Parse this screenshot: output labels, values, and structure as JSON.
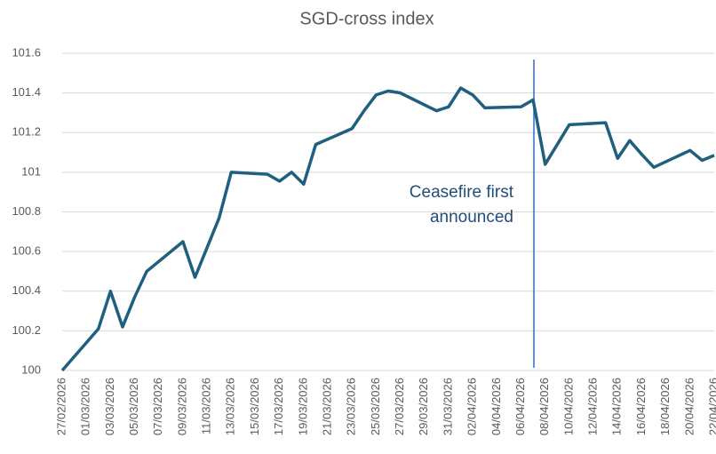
{
  "chart_data": {
    "type": "line",
    "title": "SGD-cross index",
    "x": [
      "27/02/2026",
      "02/03/2026",
      "03/03/2026",
      "04/03/2026",
      "05/03/2026",
      "06/03/2026",
      "09/03/2026",
      "10/03/2026",
      "11/03/2026",
      "12/03/2026",
      "13/03/2026",
      "16/03/2026",
      "17/03/2026",
      "18/03/2026",
      "19/03/2026",
      "20/03/2026",
      "23/03/2026",
      "24/03/2026",
      "25/03/2026",
      "26/03/2026",
      "27/03/2026",
      "30/03/2026",
      "31/03/2026",
      "01/04/2026",
      "02/04/2026",
      "03/04/2026",
      "06/04/2026",
      "07/04/2026",
      "08/04/2026",
      "10/04/2026",
      "13/04/2026",
      "14/04/2026",
      "15/04/2026",
      "16/04/2026",
      "17/04/2026",
      "20/04/2026",
      "21/04/2026",
      "22/04/2026"
    ],
    "series": [
      {
        "name": "SGD-cross index",
        "color": "#1f5f7f",
        "values": [
          100.0,
          100.21,
          100.4,
          100.22,
          100.37,
          100.5,
          100.65,
          100.47,
          100.62,
          100.77,
          101.0,
          100.99,
          100.955,
          101.0,
          100.94,
          101.14,
          101.22,
          101.31,
          101.39,
          101.41,
          101.4,
          101.31,
          101.33,
          101.425,
          101.39,
          101.325,
          101.33,
          101.365,
          101.04,
          101.24,
          101.25,
          101.07,
          101.16,
          101.09,
          101.025,
          101.11,
          101.06,
          101.085
        ]
      }
    ],
    "xlim": [
      "27/02/2026",
      "22/04/2026"
    ],
    "xticks": [
      "27/02/2026",
      "01/03/2026",
      "03/03/2026",
      "05/03/2026",
      "07/03/2026",
      "09/03/2026",
      "11/03/2026",
      "13/03/2026",
      "15/03/2026",
      "17/03/2026",
      "19/03/2026",
      "21/03/2026",
      "23/03/2026",
      "25/03/2026",
      "27/03/2026",
      "29/03/2026",
      "31/03/2026",
      "02/04/2026",
      "04/04/2026",
      "06/04/2026",
      "08/04/2026",
      "10/04/2026",
      "12/04/2026",
      "14/04/2026",
      "16/04/2026",
      "18/04/2026",
      "20/04/2026",
      "22/04/2026"
    ],
    "ylim": [
      100,
      101.6
    ],
    "yticks": [
      100,
      100.2,
      100.4,
      100.6,
      100.8,
      101,
      101.2,
      101.4,
      101.6
    ],
    "grid": true,
    "annotation": [
      "Ceasefire first",
      "announced"
    ]
  }
}
